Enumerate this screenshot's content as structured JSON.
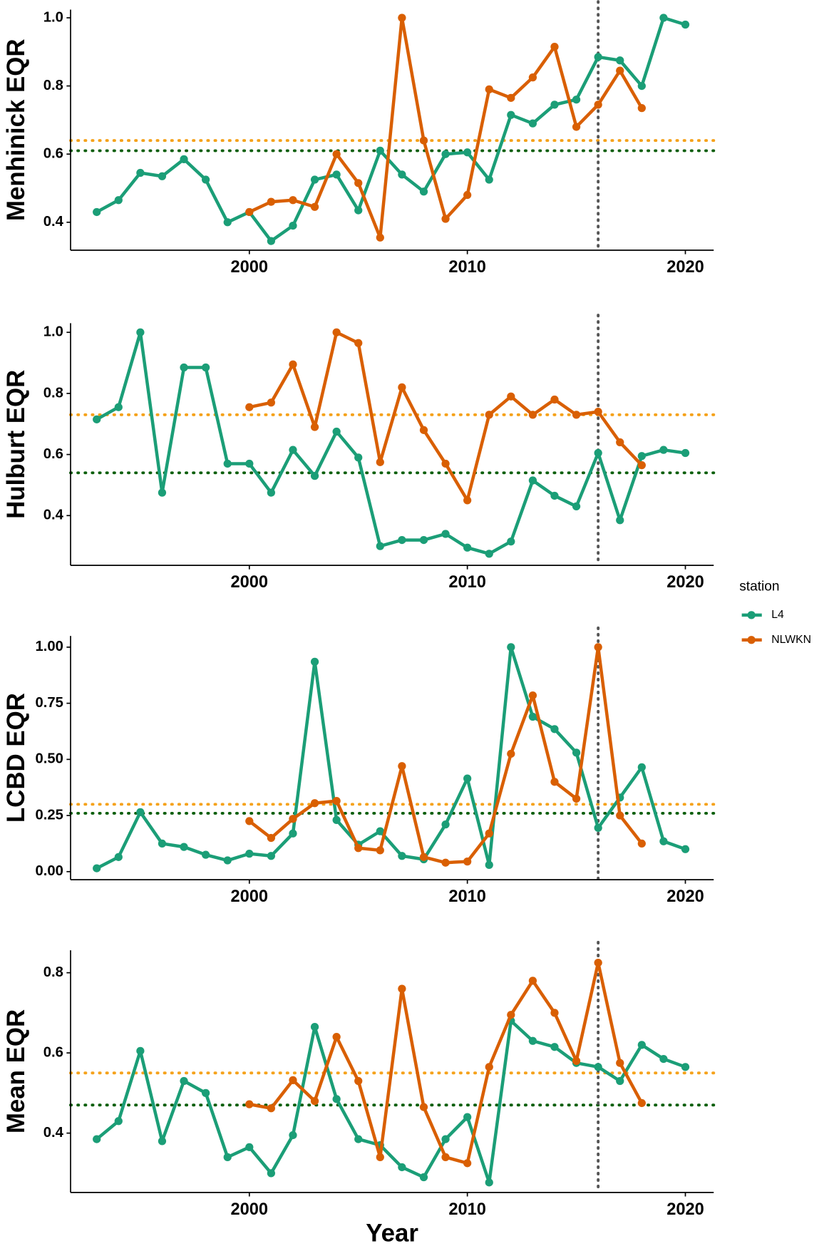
{
  "chart_data": [
    {
      "type": "line",
      "y_label": "Menhinick EQR",
      "x": [
        1993,
        1994,
        1995,
        1996,
        1997,
        1998,
        1999,
        2000,
        2001,
        2002,
        2003,
        2004,
        2005,
        2006,
        2007,
        2008,
        2009,
        2010,
        2011,
        2012,
        2013,
        2014,
        2015,
        2016,
        2017,
        2018,
        2019,
        2020
      ],
      "series": [
        {
          "name": "L4",
          "color": "#1b9e77",
          "values": [
            0.43,
            0.465,
            0.545,
            0.535,
            0.585,
            0.525,
            0.4,
            0.43,
            0.345,
            0.39,
            0.525,
            0.54,
            0.435,
            0.61,
            0.54,
            0.49,
            0.6,
            0.605,
            0.525,
            0.715,
            0.69,
            0.745,
            0.76,
            0.885,
            0.875,
            0.8,
            1.0,
            0.98
          ]
        },
        {
          "name": "NLWKN",
          "color": "#d95f02",
          "values": [
            null,
            null,
            null,
            null,
            null,
            null,
            null,
            0.43,
            0.46,
            0.465,
            0.445,
            0.6,
            0.515,
            0.355,
            1.0,
            0.64,
            0.41,
            0.48,
            0.79,
            0.765,
            0.825,
            0.915,
            0.68,
            0.745,
            0.845,
            0.735,
            null,
            null
          ]
        }
      ],
      "xlim": [
        1991.8,
        2021.3
      ],
      "xticks": [
        2000,
        2010,
        2020
      ],
      "ylim": [
        0.318,
        1.024
      ],
      "yticks": [
        0.4,
        0.6,
        0.8,
        {
          "value": 1.0,
          "label": "1.0"
        }
      ],
      "hlines": [
        {
          "value": 0.64,
          "color": "#f5a21b"
        },
        {
          "value": 0.61,
          "color": "#0b5e0b"
        }
      ],
      "vlines": [
        2016
      ]
    },
    {
      "type": "line",
      "y_label": "Hulburt EQR",
      "x": [
        1993,
        1994,
        1995,
        1996,
        1997,
        1998,
        1999,
        2000,
        2001,
        2002,
        2003,
        2004,
        2005,
        2006,
        2007,
        2008,
        2009,
        2010,
        2011,
        2012,
        2013,
        2014,
        2015,
        2016,
        2017,
        2018,
        2019,
        2020
      ],
      "series": [
        {
          "name": "L4",
          "color": "#1b9e77",
          "values": [
            0.715,
            0.755,
            1.0,
            0.475,
            0.885,
            0.885,
            0.57,
            0.57,
            0.475,
            0.615,
            0.53,
            0.675,
            0.59,
            0.3,
            0.32,
            0.32,
            0.34,
            0.295,
            0.275,
            0.315,
            0.515,
            0.465,
            0.43,
            0.605,
            0.385,
            0.595,
            0.615,
            0.605
          ]
        },
        {
          "name": "NLWKN",
          "color": "#d95f02",
          "values": [
            null,
            null,
            null,
            null,
            null,
            null,
            null,
            0.755,
            0.77,
            0.895,
            0.69,
            1.0,
            0.965,
            0.575,
            0.82,
            0.68,
            0.57,
            0.45,
            0.73,
            0.79,
            0.73,
            0.78,
            0.73,
            0.74,
            0.64,
            0.565,
            null,
            null
          ]
        }
      ],
      "xlim": [
        1991.8,
        2021.3
      ],
      "xticks": [
        2000,
        2010,
        2020
      ],
      "ylim": [
        0.237,
        1.03
      ],
      "yticks": [
        0.4,
        0.6,
        0.8,
        {
          "value": 1.0,
          "label": "1.0"
        }
      ],
      "hlines": [
        {
          "value": 0.73,
          "color": "#f5a21b"
        },
        {
          "value": 0.54,
          "color": "#0b5e0b"
        }
      ],
      "vlines": [
        2016
      ],
      "legend_title": "station",
      "legend": "right"
    },
    {
      "type": "line",
      "y_label": "LCBD EQR",
      "x": [
        1993,
        1994,
        1995,
        1996,
        1997,
        1998,
        1999,
        2000,
        2001,
        2002,
        2003,
        2004,
        2005,
        2006,
        2007,
        2008,
        2009,
        2010,
        2011,
        2012,
        2013,
        2014,
        2015,
        2016,
        2017,
        2018,
        2019,
        2020
      ],
      "series": [
        {
          "name": "L4",
          "color": "#1b9e77",
          "values": [
            0.015,
            0.065,
            0.265,
            0.125,
            0.11,
            0.075,
            0.05,
            0.08,
            0.07,
            0.17,
            0.935,
            0.23,
            0.12,
            0.18,
            0.07,
            0.055,
            0.21,
            0.415,
            0.03,
            1.0,
            0.69,
            0.635,
            0.53,
            0.195,
            0.33,
            0.465,
            0.135,
            0.1
          ]
        },
        {
          "name": "NLWKN",
          "color": "#d95f02",
          "values": [
            null,
            null,
            null,
            null,
            null,
            null,
            null,
            0.225,
            0.15,
            0.235,
            0.305,
            0.315,
            0.105,
            0.095,
            0.47,
            0.065,
            0.04,
            0.045,
            0.17,
            0.525,
            0.785,
            0.4,
            0.325,
            1.0,
            0.25,
            0.125,
            null,
            null
          ]
        }
      ],
      "xlim": [
        1991.8,
        2021.3
      ],
      "xticks": [
        2000,
        2010,
        2020
      ],
      "ylim": [
        -0.036,
        1.05
      ],
      "yticks": [
        {
          "value": 0,
          "label": "0.00"
        },
        {
          "value": 0.25,
          "label": "0.25"
        },
        {
          "value": 0.5,
          "label": "0.50"
        },
        {
          "value": 0.75,
          "label": "0.75"
        },
        {
          "value": 1.0,
          "label": "1.00"
        }
      ],
      "hlines": [
        {
          "value": 0.3,
          "color": "#f5a21b"
        },
        {
          "value": 0.26,
          "color": "#0b5e0b"
        }
      ],
      "vlines": [
        2016
      ]
    },
    {
      "type": "line",
      "y_label": "Mean EQR",
      "x_label": "Year",
      "x": [
        1993,
        1994,
        1995,
        1996,
        1997,
        1998,
        1999,
        2000,
        2001,
        2002,
        2003,
        2004,
        2005,
        2006,
        2007,
        2008,
        2009,
        2010,
        2011,
        2012,
        2013,
        2014,
        2015,
        2016,
        2017,
        2018,
        2019,
        2020
      ],
      "series": [
        {
          "name": "L4",
          "color": "#1b9e77",
          "values": [
            0.385,
            0.43,
            0.605,
            0.38,
            0.53,
            0.5,
            0.34,
            0.365,
            0.3,
            0.395,
            0.665,
            0.485,
            0.385,
            0.37,
            0.315,
            0.29,
            0.385,
            0.44,
            0.277,
            0.68,
            0.63,
            0.615,
            0.575,
            0.565,
            0.53,
            0.62,
            0.585,
            0.565
          ]
        },
        {
          "name": "NLWKN",
          "color": "#d95f02",
          "values": [
            null,
            null,
            null,
            null,
            null,
            null,
            null,
            0.472,
            0.462,
            0.532,
            0.48,
            0.64,
            0.53,
            0.34,
            0.76,
            0.465,
            0.34,
            0.325,
            0.565,
            0.695,
            0.78,
            0.7,
            0.58,
            0.825,
            0.575,
            0.475,
            null,
            null
          ]
        }
      ],
      "xlim": [
        1991.8,
        2021.3
      ],
      "xticks": [
        2000,
        2010,
        2020
      ],
      "ylim": [
        0.252,
        0.856
      ],
      "yticks": [
        0.4,
        0.6,
        0.8
      ],
      "hlines": [
        {
          "value": 0.55,
          "color": "#f5a21b"
        },
        {
          "value": 0.47,
          "color": "#0b5e0b"
        }
      ],
      "vlines": [
        2016
      ]
    }
  ]
}
